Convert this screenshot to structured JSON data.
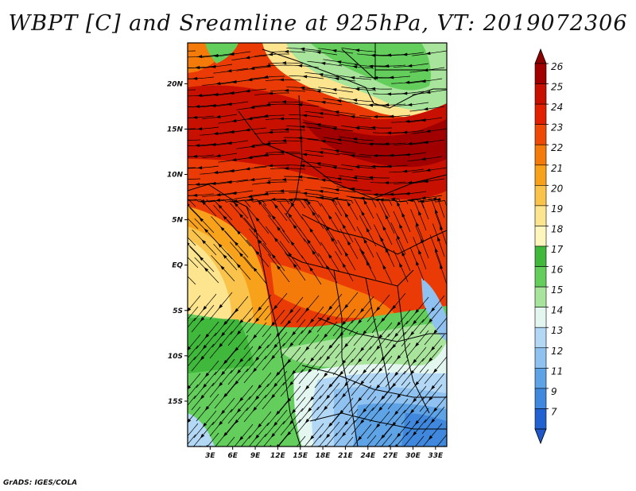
{
  "title": "WBPT [C] and Sreamline at 925hPa, VT: 2019072306",
  "footer": "GrADS: IGES/COLA",
  "map": {
    "lat_labels": [
      "20N",
      "15N",
      "10N",
      "5N",
      "EQ",
      "5S",
      "10S",
      "15S"
    ],
    "lon_labels": [
      "3E",
      "6E",
      "9E",
      "12E",
      "15E",
      "18E",
      "21E",
      "24E",
      "27E",
      "30E",
      "33E"
    ],
    "lat_range": [
      -20,
      24.5
    ],
    "lon_range": [
      0,
      34.5
    ],
    "field": "wet-bulb potential temperature",
    "overlay": "streamlines",
    "land_borders": "black"
  },
  "colorbar": {
    "levels": [
      "26",
      "25",
      "24",
      "23",
      "22",
      "21",
      "20",
      "19",
      "18",
      "17",
      "16",
      "15",
      "14",
      "13",
      "12",
      "11",
      "9",
      "7"
    ],
    "colors": [
      "#a00000",
      "#c81000",
      "#e12000",
      "#ee4a06",
      "#f47a0a",
      "#f7a21a",
      "#fac44c",
      "#fde58f",
      "#fef6bc",
      "#3fb83b",
      "#64ce5c",
      "#a8e49b",
      "#e3f6ef",
      "#b2d8f6",
      "#8fc2f0",
      "#5ea3e6",
      "#3f88dd",
      "#2261d1"
    ],
    "top_arrow_color": "#8c0000",
    "bottom_arrow_color": "#1f56c8"
  }
}
